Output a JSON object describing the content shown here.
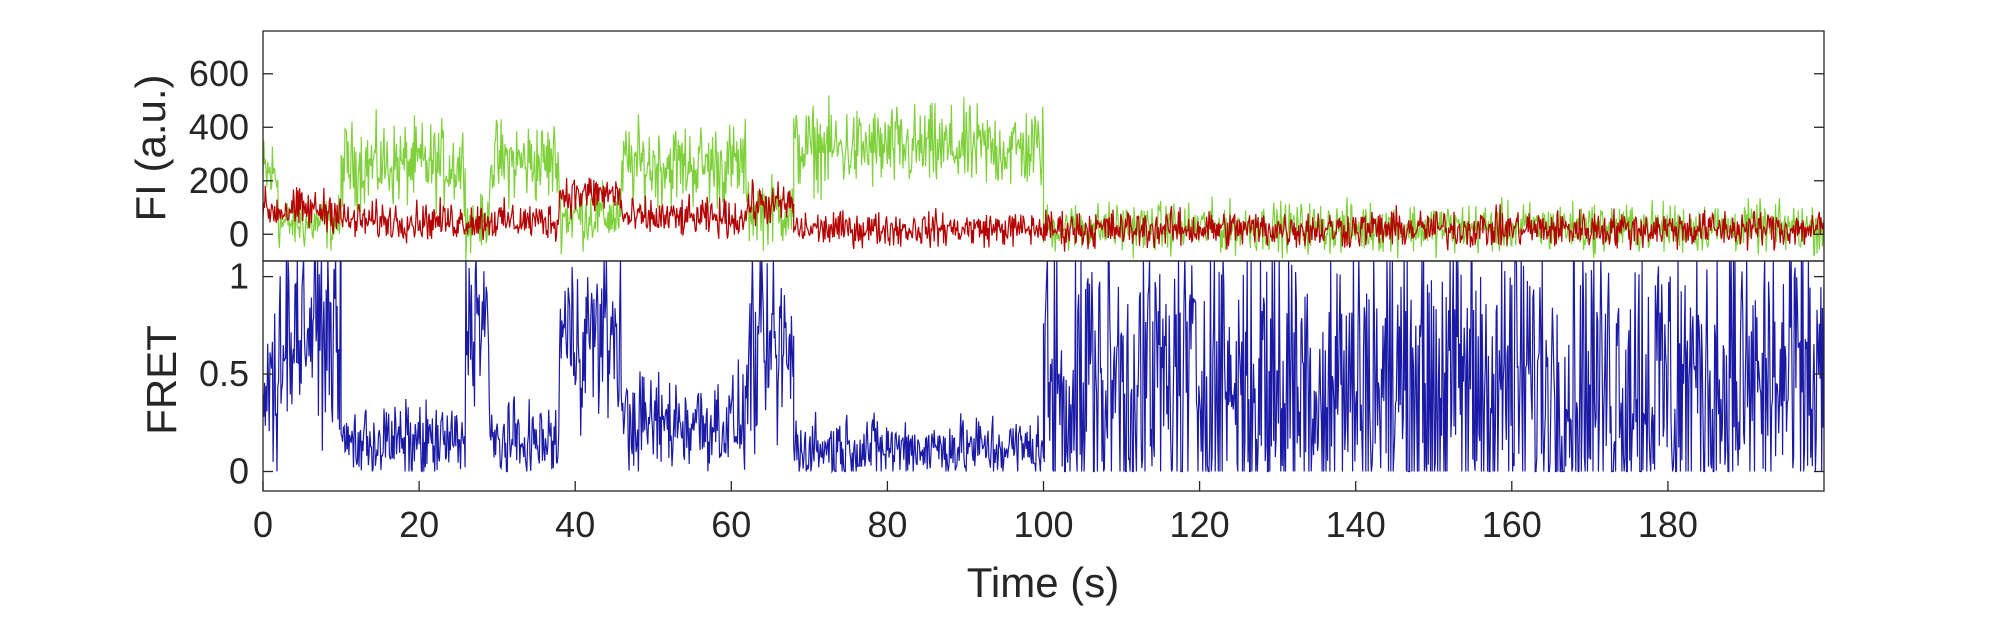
{
  "chart_data": [
    {
      "name": "fluorescence",
      "type": "line",
      "ylabel": "FI (a.u.)",
      "xlim": [
        0,
        200
      ],
      "ylim": [
        -100,
        760
      ],
      "yticks": [
        0,
        200,
        400,
        600
      ],
      "ytick_labels": [
        "0",
        "200",
        "400",
        "600"
      ],
      "grid": false,
      "series": [
        {
          "color": "#7fd13b",
          "segments": [
            {
              "x_start": 0,
              "x_end": 2,
              "level": 220,
              "noise": 110
            },
            {
              "x_start": 2,
              "x_end": 10,
              "level": 40,
              "noise": 70
            },
            {
              "x_start": 10,
              "x_end": 26,
              "level": 260,
              "noise": 110
            },
            {
              "x_start": 26,
              "x_end": 29,
              "level": 40,
              "noise": 70
            },
            {
              "x_start": 29,
              "x_end": 38,
              "level": 270,
              "noise": 110
            },
            {
              "x_start": 38,
              "x_end": 46,
              "level": 70,
              "noise": 80
            },
            {
              "x_start": 46,
              "x_end": 62,
              "level": 260,
              "noise": 110
            },
            {
              "x_start": 62,
              "x_end": 68,
              "level": 90,
              "noise": 90
            },
            {
              "x_start": 68,
              "x_end": 100,
              "level": 320,
              "noise": 110
            },
            {
              "x_start": 100,
              "x_end": 200,
              "level": 25,
              "noise": 65
            }
          ]
        },
        {
          "color": "#b40000",
          "segments": [
            {
              "x_start": 0,
              "x_end": 10,
              "level": 90,
              "noise": 55
            },
            {
              "x_start": 10,
              "x_end": 38,
              "level": 50,
              "noise": 50
            },
            {
              "x_start": 38,
              "x_end": 46,
              "level": 150,
              "noise": 55
            },
            {
              "x_start": 46,
              "x_end": 62,
              "level": 60,
              "noise": 50
            },
            {
              "x_start": 62,
              "x_end": 68,
              "level": 110,
              "noise": 55
            },
            {
              "x_start": 68,
              "x_end": 100,
              "level": 20,
              "noise": 45
            },
            {
              "x_start": 100,
              "x_end": 200,
              "level": 20,
              "noise": 50
            }
          ]
        }
      ]
    },
    {
      "name": "fret",
      "type": "line",
      "xlabel": "Time (s)",
      "ylabel": "FRET",
      "xlim": [
        0,
        200
      ],
      "ylim": [
        -0.1,
        1.08
      ],
      "xticks": [
        0,
        20,
        40,
        60,
        80,
        100,
        120,
        140,
        160,
        180
      ],
      "xtick_labels": [
        "0",
        "20",
        "40",
        "60",
        "80",
        "100",
        "120",
        "140",
        "160",
        "180"
      ],
      "yticks": [
        0,
        0.5,
        1
      ],
      "ytick_labels": [
        "0",
        "0.5",
        "1"
      ],
      "grid": false,
      "series": [
        {
          "color": "#1a1aa6",
          "segments": [
            {
              "x_start": 0,
              "x_end": 2,
              "level": 0.4,
              "noise": 0.35
            },
            {
              "x_start": 2,
              "x_end": 10,
              "level": 0.75,
              "noise": 0.35
            },
            {
              "x_start": 10,
              "x_end": 26,
              "level": 0.15,
              "noise": 0.14
            },
            {
              "x_start": 26,
              "x_end": 29,
              "level": 0.8,
              "noise": 0.3
            },
            {
              "x_start": 29,
              "x_end": 38,
              "level": 0.15,
              "noise": 0.14
            },
            {
              "x_start": 38,
              "x_end": 46,
              "level": 0.7,
              "noise": 0.3
            },
            {
              "x_start": 46,
              "x_end": 62,
              "level": 0.25,
              "noise": 0.18
            },
            {
              "x_start": 62,
              "x_end": 68,
              "level": 0.6,
              "noise": 0.35
            },
            {
              "x_start": 68,
              "x_end": 100,
              "level": 0.12,
              "noise": 0.12
            },
            {
              "x_start": 100,
              "x_end": 200,
              "level": 0.45,
              "noise": 0.6
            }
          ]
        }
      ]
    }
  ]
}
